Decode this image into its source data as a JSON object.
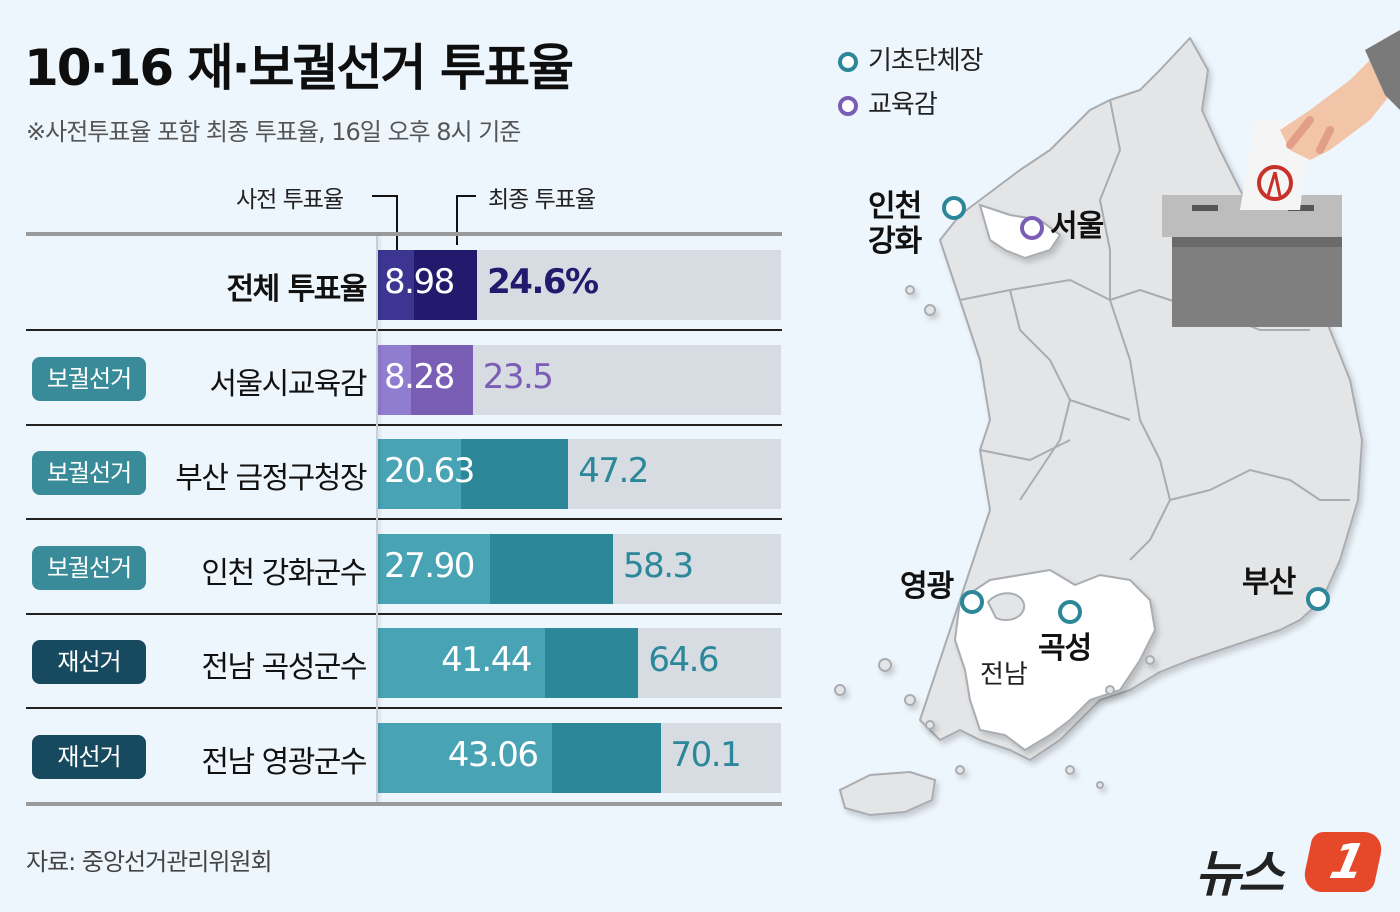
{
  "header": {
    "title": "10·16 재·보궐선거 투표율",
    "subtitle": "※사전투표율 포함 최종 투표율, 16일 오후 8시 기준"
  },
  "legend_labels": {
    "pre": "사전 투표율",
    "final": "최종 투표율"
  },
  "colors": {
    "total_pre": "#3c3592",
    "total_final": "#231a6e",
    "edu_pre": "#917dd0",
    "edu_final": "#7a5db5",
    "local_pre": "#48a3b5",
    "local_final": "#2c8799",
    "track": "#d6dce2",
    "badge_bo": "#3a8b99",
    "badge_jae": "#17495f",
    "total_text": "#231a6e",
    "edu_text": "#7a5db5",
    "local_text": "#2c8799"
  },
  "rows": [
    {
      "badge": "",
      "label": "전체 투표율",
      "pre": "8.98",
      "final": "24.6%"
    },
    {
      "badge": "보궐선거",
      "label": "서울시교육감",
      "pre": "8.28",
      "final": "23.5"
    },
    {
      "badge": "보궐선거",
      "label": "부산 금정구청장",
      "pre": "20.63",
      "final": "47.2"
    },
    {
      "badge": "보궐선거",
      "label": "인천 강화군수",
      "pre": "27.90",
      "final": "58.3"
    },
    {
      "badge": "재선거",
      "label": "전남 곡성군수",
      "pre": "41.44",
      "final": "64.6"
    },
    {
      "badge": "재선거",
      "label": "전남 영광군수",
      "pre": "43.06",
      "final": "70.1"
    }
  ],
  "source": "자료: 중앙선거관리위원회",
  "map": {
    "legend": [
      {
        "label": "기초단체장",
        "color": "#2c8799"
      },
      {
        "label": "교육감",
        "color": "#7a5db5"
      }
    ],
    "cities": {
      "incheon_line1": "인천",
      "incheon_line2": "강화",
      "seoul": "서울",
      "yeonggwang": "영광",
      "gokseong": "곡성",
      "busan": "부산"
    },
    "region_label": "전남"
  },
  "logo": {
    "text": "뉴스",
    "mark": "1"
  },
  "chart_data": {
    "type": "bar",
    "title": "10·16 재·보궐선거 투표율",
    "subtitle": "※사전투표율 포함 최종 투표율, 16일 오후 8시 기준",
    "categories": [
      "전체 투표율",
      "서울시교육감",
      "부산 금정구청장",
      "인천 강화군수",
      "전남 곡성군수",
      "전남 영광군수"
    ],
    "category_groups": [
      "",
      "보궐선거",
      "보궐선거",
      "보궐선거",
      "재선거",
      "재선거"
    ],
    "series": [
      {
        "name": "사전 투표율",
        "values": [
          8.98,
          8.28,
          20.63,
          27.9,
          41.44,
          43.06
        ]
      },
      {
        "name": "최종 투표율",
        "values": [
          24.6,
          23.5,
          47.2,
          58.3,
          64.6,
          70.1
        ]
      }
    ],
    "orientation": "horizontal",
    "overlay": true,
    "xlim": [
      0,
      100
    ],
    "unit": "%",
    "source": "자료: 중앙선거관리위원회"
  }
}
